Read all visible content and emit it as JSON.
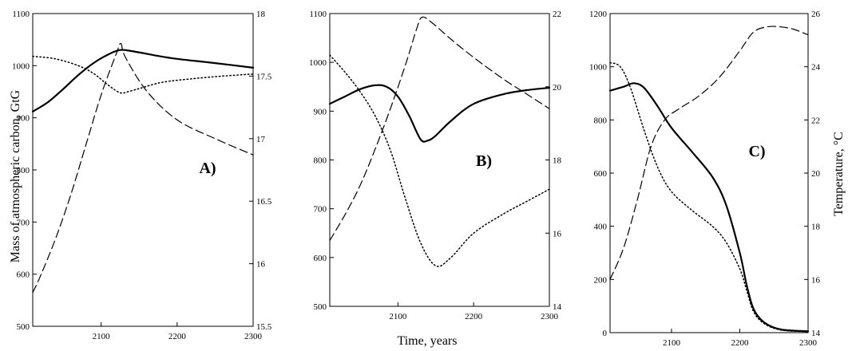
{
  "figure": {
    "left_axis_label": "Mass of atmospheric carbon, GtG",
    "right_axis_label": "Temperature, °C",
    "x_axis_label": "Time, years"
  },
  "chart_data": [
    {
      "type": "line",
      "panel_label": "A)",
      "xlim": [
        2010,
        2300
      ],
      "ylim": [
        500,
        1100
      ],
      "y2lim": [
        15.5,
        18
      ],
      "x_ticks": [
        2100,
        2200,
        2300
      ],
      "y_ticks": [
        500,
        600,
        700,
        800,
        900,
        1000,
        1100
      ],
      "y2_ticks": [
        15.5,
        16,
        16.5,
        17,
        17.5,
        18
      ],
      "series": [
        {
          "style": "solid",
          "axis": "left",
          "x": [
            2010,
            2030,
            2050,
            2070,
            2090,
            2110,
            2125,
            2140,
            2170,
            2200,
            2250,
            2300
          ],
          "y": [
            912,
            930,
            955,
            982,
            1005,
            1022,
            1030,
            1028,
            1020,
            1013,
            1005,
            996
          ]
        },
        {
          "style": "dotted",
          "axis": "left",
          "x": [
            2010,
            2040,
            2070,
            2090,
            2110,
            2125,
            2135,
            2150,
            2180,
            2220,
            2260,
            2300
          ],
          "y": [
            1018,
            1013,
            1000,
            985,
            962,
            948,
            950,
            956,
            968,
            975,
            980,
            984
          ]
        },
        {
          "style": "dashed",
          "axis": "right",
          "x": [
            2010,
            2020,
            2040,
            2060,
            2080,
            2100,
            2120,
            2126,
            2132,
            2160,
            2200,
            2250,
            2300
          ],
          "y": [
            15.77,
            15.9,
            16.2,
            16.55,
            16.95,
            17.35,
            17.68,
            17.76,
            17.65,
            17.38,
            17.15,
            17.0,
            16.87
          ]
        }
      ]
    },
    {
      "type": "line",
      "panel_label": "B)",
      "xlim": [
        2010,
        2300
      ],
      "ylim": [
        500,
        1100
      ],
      "y2lim": [
        14,
        22
      ],
      "x_ticks": [
        2100,
        2200,
        2300
      ],
      "y_ticks": [
        500,
        600,
        700,
        800,
        900,
        1000,
        1100
      ],
      "y2_ticks": [
        14,
        16,
        18,
        20,
        22
      ],
      "series": [
        {
          "style": "solid",
          "axis": "left",
          "x": [
            2010,
            2030,
            2050,
            2070,
            2085,
            2100,
            2115,
            2130,
            2140,
            2150,
            2170,
            2200,
            2240,
            2270,
            2300
          ],
          "y": [
            915,
            930,
            945,
            953,
            950,
            930,
            890,
            842,
            840,
            850,
            880,
            915,
            935,
            943,
            948
          ]
        },
        {
          "style": "dotted",
          "axis": "left",
          "x": [
            2010,
            2030,
            2050,
            2070,
            2090,
            2110,
            2130,
            2150,
            2170,
            2200,
            2240,
            2270,
            2300
          ],
          "y": [
            1015,
            980,
            940,
            890,
            820,
            720,
            630,
            583,
            600,
            650,
            690,
            715,
            740
          ]
        },
        {
          "style": "dashed",
          "axis": "right",
          "x": [
            2010,
            2030,
            2050,
            2070,
            2090,
            2110,
            2125,
            2132,
            2145,
            2170,
            2200,
            2240,
            2270,
            2300
          ],
          "y": [
            15.8,
            16.5,
            17.3,
            18.3,
            19.4,
            20.6,
            21.6,
            21.9,
            21.75,
            21.3,
            20.8,
            20.2,
            19.8,
            19.4
          ]
        }
      ]
    },
    {
      "type": "line",
      "panel_label": "C)",
      "xlim": [
        2010,
        2300
      ],
      "ylim": [
        0,
        1200
      ],
      "y2lim": [
        14,
        26
      ],
      "x_ticks": [
        2100,
        2200,
        2300
      ],
      "y_ticks": [
        0,
        200,
        400,
        600,
        800,
        1000,
        1200
      ],
      "y2_ticks": [
        14,
        16,
        18,
        20,
        22,
        24,
        26
      ],
      "series": [
        {
          "style": "solid",
          "axis": "left",
          "x": [
            2010,
            2030,
            2045,
            2060,
            2080,
            2100,
            2130,
            2160,
            2180,
            2200,
            2210,
            2220,
            2235,
            2260,
            2300
          ],
          "y": [
            910,
            925,
            938,
            920,
            850,
            770,
            680,
            585,
            480,
            300,
            180,
            90,
            40,
            12,
            5
          ]
        },
        {
          "style": "dotted",
          "axis": "left",
          "x": [
            2010,
            2025,
            2040,
            2060,
            2080,
            2100,
            2130,
            2160,
            2180,
            2200,
            2210,
            2220,
            2235,
            2260,
            2300
          ],
          "y": [
            1015,
            1000,
            920,
            760,
            620,
            530,
            460,
            400,
            340,
            240,
            160,
            80,
            35,
            10,
            4
          ]
        },
        {
          "style": "dashed",
          "axis": "right",
          "x": [
            2010,
            2030,
            2050,
            2070,
            2090,
            2110,
            2140,
            2170,
            2200,
            2220,
            2240,
            2260,
            2280,
            2300
          ],
          "y": [
            16.0,
            17.2,
            19.0,
            21.0,
            22.0,
            22.4,
            22.9,
            23.6,
            24.6,
            25.3,
            25.5,
            25.5,
            25.4,
            25.2
          ]
        }
      ]
    }
  ]
}
